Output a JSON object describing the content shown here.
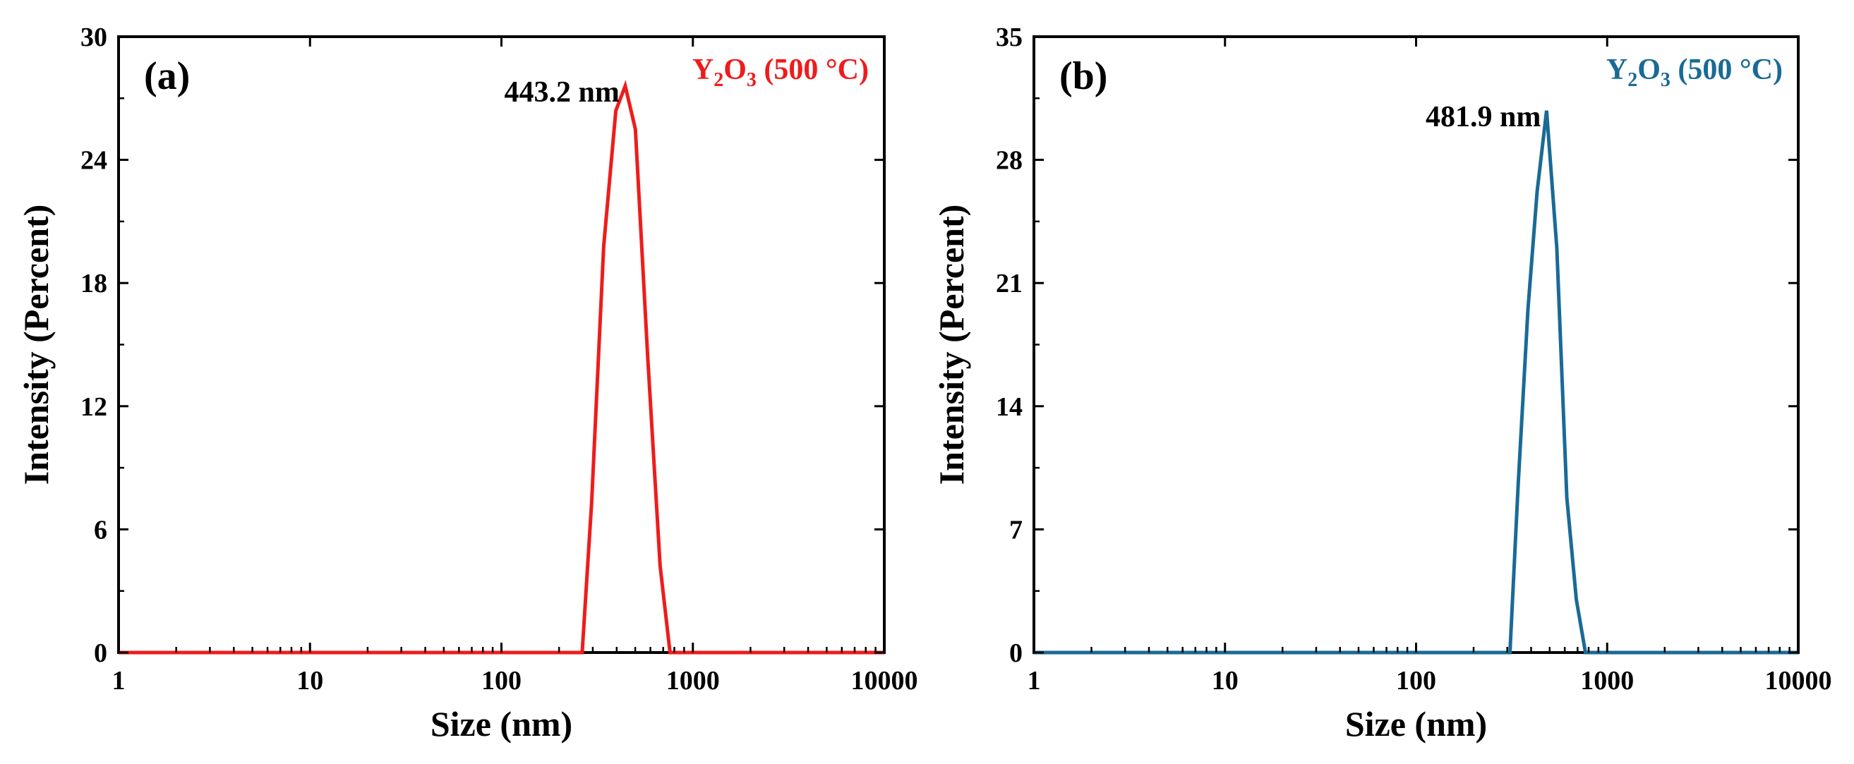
{
  "chart_data": [
    {
      "type": "line",
      "panel_label": "(a)",
      "xlabel": "Size (nm)",
      "ylabel": "Intensity (Percent)",
      "xscale": "log",
      "xlim": [
        1,
        10000
      ],
      "ylim": [
        0,
        30
      ],
      "x_ticks": [
        1,
        10,
        100,
        1000,
        10000
      ],
      "x_tick_labels": [
        "1",
        "10",
        "100",
        "1000",
        "10000"
      ],
      "y_ticks": [
        0,
        6,
        12,
        18,
        24,
        30
      ],
      "y_tick_labels": [
        "0",
        "6",
        "12",
        "18",
        "24",
        "30"
      ],
      "legend": {
        "parts": [
          {
            "text": "Y",
            "sub": false
          },
          {
            "text": "2",
            "sub": true
          },
          {
            "text": "O",
            "sub": false
          },
          {
            "text": "3",
            "sub": true
          },
          {
            "text": " (500 °C)",
            "sub": false
          }
        ],
        "placement": "top-right"
      },
      "peak_annotation": {
        "text": "443.2 nm",
        "x": 443.2,
        "y": 27.6
      },
      "color": "#ee1c1c",
      "series": [
        {
          "name": "Y2O3 (500 °C)",
          "x": [
            1,
            264,
            296,
            342,
            396,
            443.2,
            501,
            580,
            675,
            760,
            10000
          ],
          "y": [
            0,
            0,
            7.3,
            19.8,
            26.4,
            27.6,
            25.5,
            14.5,
            4.2,
            0,
            0
          ]
        }
      ]
    },
    {
      "type": "line",
      "panel_label": "(b)",
      "xlabel": "Size (nm)",
      "ylabel": "Intensity (Percent)",
      "xscale": "log",
      "xlim": [
        1,
        10000
      ],
      "ylim": [
        0,
        35
      ],
      "x_ticks": [
        1,
        10,
        100,
        1000,
        10000
      ],
      "x_tick_labels": [
        "1",
        "10",
        "100",
        "1000",
        "10000"
      ],
      "y_ticks": [
        0,
        7,
        14,
        21,
        28,
        35
      ],
      "y_tick_labels": [
        "0",
        "7",
        "14",
        "21",
        "28",
        "35"
      ],
      "legend": {
        "parts": [
          {
            "text": "Y",
            "sub": false
          },
          {
            "text": "2",
            "sub": true
          },
          {
            "text": "O",
            "sub": false
          },
          {
            "text": "3",
            "sub": true
          },
          {
            "text": " (500 °C)",
            "sub": false
          }
        ],
        "placement": "top-right"
      },
      "peak_annotation": {
        "text": "481.9 nm",
        "x": 481.9,
        "y": 30.8
      },
      "color": "#1a6a96",
      "series": [
        {
          "name": "Y2O3 (500 °C)",
          "x": [
            1,
            310,
            342,
            385,
            430,
            481.9,
            545,
            615,
            690,
            770,
            10000
          ],
          "y": [
            0,
            0,
            9.5,
            19.5,
            26.2,
            30.8,
            23.0,
            8.8,
            3.0,
            0,
            0
          ]
        }
      ]
    }
  ]
}
